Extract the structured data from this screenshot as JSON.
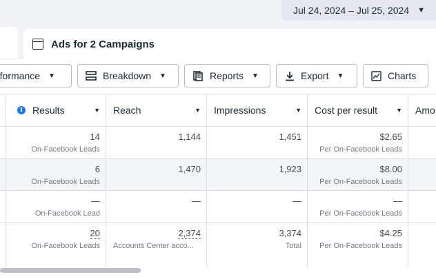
{
  "date_range": {
    "label": "Jul 24, 2024 – Jul 25, 2024"
  },
  "campaign_tab": {
    "title": "Ads for 2 Campaigns",
    "icon": "window-icon"
  },
  "toolbar": {
    "performance": "rformance",
    "breakdown": "Breakdown",
    "reports": "Reports",
    "export": "Export",
    "charts": "Charts"
  },
  "table": {
    "headers": [
      "Results",
      "Reach",
      "Impressions",
      "Cost per result",
      "Amo"
    ],
    "rows": [
      {
        "results": "14",
        "results_sub": "On-Facebook Leads",
        "reach": "1,144",
        "impressions": "1,451",
        "cost": "$2.65",
        "cost_sub": "Per On-Facebook Leads"
      },
      {
        "results": "6",
        "results_sub": "On-Facebook Leads",
        "reach": "1,470",
        "impressions": "1,923",
        "cost": "$8.00",
        "cost_sub": "Per On-Facebook Leads"
      },
      {
        "results": "—",
        "results_sub": "On-Facebook Lead",
        "reach": "—",
        "impressions": "—",
        "cost": "—",
        "cost_sub": "Per On-Facebook Leads"
      }
    ],
    "total": {
      "results": "20",
      "results_sub": "On-Facebook Leads",
      "reach": "2,374",
      "reach_sub": "Accounts Center acco...",
      "impressions": "3,374",
      "impressions_sub": "Total",
      "cost": "$4.25",
      "cost_sub": "Per On-Facebook Leads"
    }
  },
  "colors": {
    "accent": "#1876f2",
    "border": "#dadde1",
    "date_bg": "#e4e6f1"
  }
}
